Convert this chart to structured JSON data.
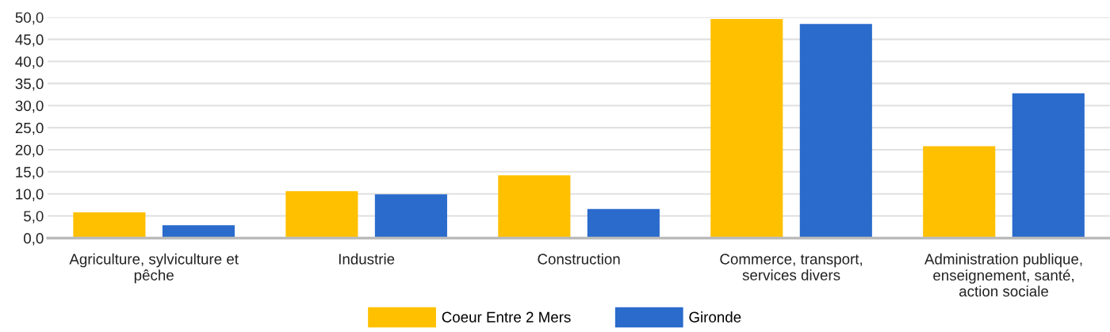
{
  "chart_data": {
    "type": "bar",
    "categories": [
      "Agriculture, sylviculture et\npêche",
      "Industrie",
      "Construction",
      "Commerce, transport,\nservices divers",
      "Administration publique,\nenseignement, santé,\naction sociale"
    ],
    "series": [
      {
        "name": "Coeur Entre 2 Mers",
        "color": "#ffc000",
        "values": [
          5.8,
          10.6,
          14.2,
          49.6,
          20.8
        ]
      },
      {
        "name": "Gironde",
        "color": "#2a6bcc",
        "values": [
          2.9,
          9.9,
          6.6,
          48.5,
          32.8
        ]
      }
    ],
    "ylim": [
      0,
      50
    ],
    "yticks": [
      {
        "value": 0,
        "label": "0,0"
      },
      {
        "value": 5,
        "label": "5,0"
      },
      {
        "value": 10,
        "label": "10,0"
      },
      {
        "value": 15,
        "label": "15,0"
      },
      {
        "value": 20,
        "label": "20,0"
      },
      {
        "value": 25,
        "label": "25,0"
      },
      {
        "value": 30,
        "label": "30,0"
      },
      {
        "value": 35,
        "label": "35,0"
      },
      {
        "value": 40,
        "label": "40,0"
      },
      {
        "value": 45,
        "label": "45,0"
      },
      {
        "value": 50,
        "label": "50,0"
      }
    ],
    "grid": "y",
    "legend": "bottom"
  }
}
